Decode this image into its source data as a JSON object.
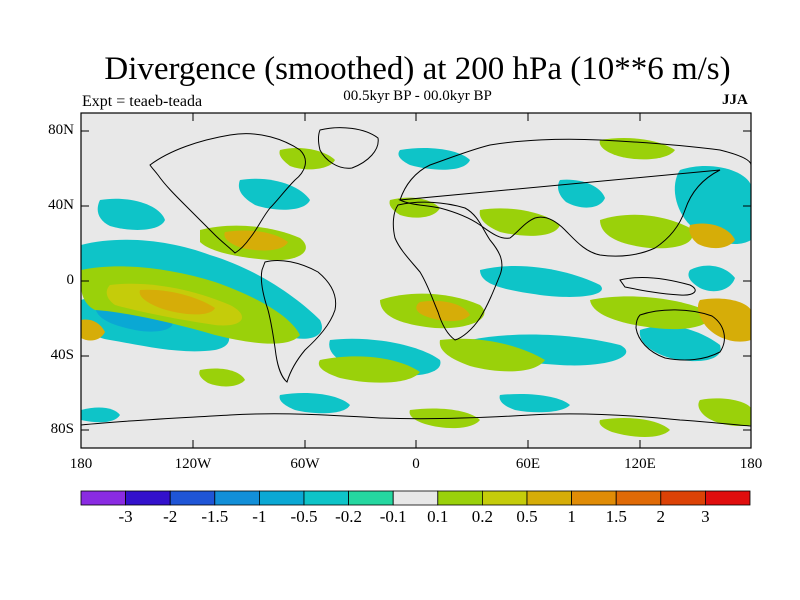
{
  "title": "Divergence (smoothed) at 200 hPa (10**6 m/s)",
  "expt": "Expt = teaeb-teada",
  "subtitle": "00.5kyr BP - 00.0kyr BP",
  "season": "JJA",
  "lat_labels": [
    "80N",
    "40N",
    "0",
    "40S",
    "80S"
  ],
  "lon_labels": [
    "180",
    "120W",
    "60W",
    "0",
    "60E",
    "120E",
    "180"
  ],
  "colorbar": {
    "colors": [
      "#8a2be2",
      "#3311cc",
      "#1f55d6",
      "#128fd8",
      "#0aa8d4",
      "#0ec4c8",
      "#25d7a0",
      "#e8e8e8",
      "#9ad10a",
      "#c5cc0a",
      "#d6ad08",
      "#e08c06",
      "#e06a06",
      "#dc4206",
      "#e00e0e"
    ],
    "labels": [
      "-3",
      "-2",
      "-1.5",
      "-1",
      "-0.5",
      "-0.2",
      "-0.1",
      "0.1",
      "0.2",
      "0.5",
      "1",
      "1.5",
      "2",
      "3"
    ]
  },
  "map": {
    "background": "#e8e8e8",
    "lat_range": [
      -90,
      90
    ],
    "lon_range": [
      -180,
      180
    ]
  }
}
